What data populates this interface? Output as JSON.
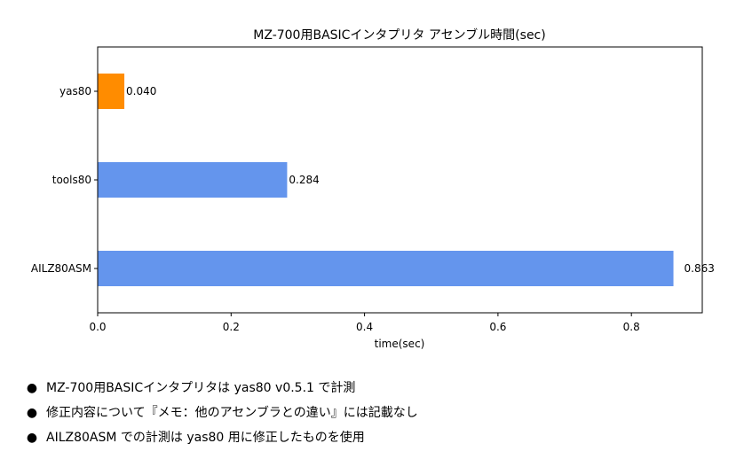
{
  "chart_data": {
    "type": "bar",
    "orientation": "horizontal",
    "title": "MZ-700用BASICインタプリタ アセンブル時間(sec)",
    "xlabel": "time(sec)",
    "ylabel": "",
    "xlim": [
      0,
      0.9062
    ],
    "xticks": [
      0.0,
      0.2,
      0.4,
      0.6,
      0.8
    ],
    "xtick_labels": [
      "0.0",
      "0.2",
      "0.4",
      "0.6",
      "0.8"
    ],
    "grid": false,
    "categories": [
      "yas80",
      "tools80",
      "AILZ80ASM"
    ],
    "values": [
      0.04,
      0.284,
      0.863
    ],
    "value_labels": [
      "0.040",
      "0.284",
      "0.863"
    ],
    "colors": [
      "#ff8c00",
      "#6495ed",
      "#6495ed"
    ]
  },
  "notes": [
    "MZ-700用BASICインタプリタは yas80 v0.5.1 で計測",
    "修正内容について『メモ：他のアセンブラとの違い』には記載なし",
    "AILZ80ASM での計測は yas80 用に修正したものを使用"
  ]
}
